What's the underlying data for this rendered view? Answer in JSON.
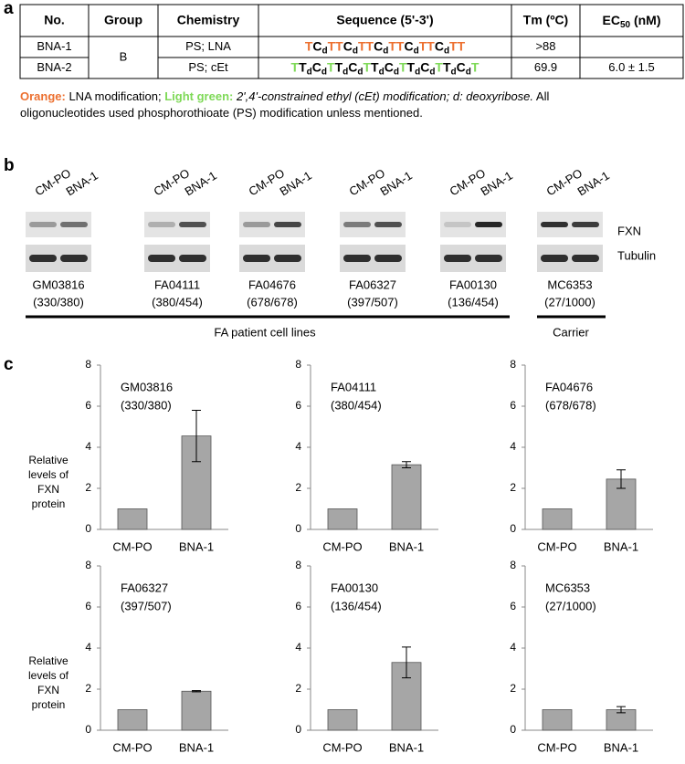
{
  "panel_labels": [
    "a",
    "b",
    "c"
  ],
  "table": {
    "headers": [
      "No.",
      "Group",
      "Chemistry",
      "Sequence (5'-3')",
      "Tm (ºC)",
      {
        "main": "EC",
        "sub": "50",
        "rest": " (nM)"
      }
    ],
    "group": "B",
    "rows": [
      {
        "no": "BNA-1",
        "chemistry": "PS; LNA",
        "tm": ">88",
        "sequence": [
          {
            "b": "T",
            "color": "#ec7030"
          },
          {
            "b": "C",
            "s": "d"
          },
          {
            "b": "T",
            "color": "#ec7030"
          },
          {
            "b": "T",
            "color": "#ec7030"
          },
          {
            "b": "C",
            "s": "d"
          },
          {
            "b": "T",
            "color": "#ec7030"
          },
          {
            "b": "T",
            "color": "#ec7030"
          },
          {
            "b": "C",
            "s": "d"
          },
          {
            "b": "T",
            "color": "#ec7030"
          },
          {
            "b": "T",
            "color": "#ec7030"
          },
          {
            "b": "C",
            "s": "d"
          },
          {
            "b": "T",
            "color": "#ec7030"
          },
          {
            "b": "T",
            "color": "#ec7030"
          },
          {
            "b": "C",
            "s": "d"
          },
          {
            "b": "T",
            "color": "#ec7030"
          },
          {
            "b": "T",
            "color": "#ec7030"
          }
        ]
      },
      {
        "no": "BNA-2",
        "chemistry": "PS; cEt",
        "tm": "69.9",
        "ec50": "6.0 ± 1.5",
        "sequence": [
          {
            "b": "T",
            "color": "#7ed957"
          },
          {
            "b": "T",
            "s": "d"
          },
          {
            "b": "C",
            "s": "d"
          },
          {
            "b": "T",
            "color": "#7ed957"
          },
          {
            "b": "T",
            "s": "d"
          },
          {
            "b": "C",
            "s": "d"
          },
          {
            "b": "T",
            "color": "#7ed957"
          },
          {
            "b": "T",
            "s": "d"
          },
          {
            "b": "C",
            "s": "d"
          },
          {
            "b": "T",
            "color": "#7ed957"
          },
          {
            "b": "T",
            "s": "d"
          },
          {
            "b": "C",
            "s": "d"
          },
          {
            "b": "T",
            "color": "#7ed957"
          },
          {
            "b": "T",
            "s": "d"
          },
          {
            "b": "C",
            "s": "d"
          },
          {
            "b": "T",
            "color": "#7ed957"
          }
        ]
      }
    ]
  },
  "footnote": [
    [
      {
        "text": "Orange:",
        "color": "#ec7030",
        "bold": true
      },
      {
        "text": " LNA modification; "
      },
      {
        "text": "Light green:",
        "color": "#7ed957",
        "bold": true
      },
      {
        "text": " 2',4'-constrained ethyl (cEt) modification; d: deoxyribose.",
        "italic": true
      },
      {
        "text": "  All"
      }
    ],
    [
      {
        "text": "oligonucleotides used phosphorothioate (PS) modification unless mentioned."
      }
    ]
  ],
  "blot": {
    "lanes": [
      "CM-PO",
      "BNA-1"
    ],
    "rows": [
      "FXN",
      "Tubulin"
    ],
    "blots": [
      {
        "cell_line": "GM03816",
        "ratio": "(330/380)"
      },
      {
        "cell_line": "FA04111",
        "ratio": "(380/454)"
      },
      {
        "cell_line": "FA04676",
        "ratio": "(678/678)"
      },
      {
        "cell_line": "FA06327",
        "ratio": "(397/507)"
      },
      {
        "cell_line": "FA00130",
        "ratio": "(136/454)"
      },
      {
        "cell_line": "MC6353",
        "ratio": "(27/1000)"
      }
    ],
    "groups": [
      "FA  patient cell lines",
      "Carrier"
    ]
  },
  "chart_data": [
    {
      "type": "bar",
      "title": "GM03816",
      "subtitle": "(330/380)",
      "ylabel": [
        "Relative",
        "levels of",
        "FXN",
        "protein"
      ],
      "categories": [
        "CM-PO",
        "BNA-1"
      ],
      "values": [
        1,
        4.55
      ],
      "errors": [
        null,
        1.25
      ],
      "ylim": [
        0,
        8
      ],
      "yticks": [
        0,
        2,
        4,
        6,
        8
      ],
      "color": "#a6a6a6"
    },
    {
      "type": "bar",
      "title": "FA04111",
      "subtitle": "(380/454)",
      "categories": [
        "CM-PO",
        "BNA-1"
      ],
      "values": [
        1,
        3.15
      ],
      "errors": [
        null,
        0.15
      ],
      "ylim": [
        0,
        8
      ],
      "yticks": [
        0,
        2,
        4,
        6,
        8
      ],
      "color": "#a6a6a6"
    },
    {
      "type": "bar",
      "title": "FA04676",
      "subtitle": "(678/678)",
      "categories": [
        "CM-PO",
        "BNA-1"
      ],
      "values": [
        1,
        2.45
      ],
      "errors": [
        null,
        0.45
      ],
      "ylim": [
        0,
        8
      ],
      "yticks": [
        0,
        2,
        4,
        6,
        8
      ],
      "color": "#a6a6a6"
    },
    {
      "type": "bar",
      "title": "FA06327",
      "subtitle": "(397/507)",
      "ylabel": [
        "Relative",
        "levels of",
        "FXN",
        "protein"
      ],
      "categories": [
        "CM-PO",
        "BNA-1"
      ],
      "values": [
        1,
        1.9
      ],
      "errors": [
        null,
        0.03
      ],
      "ylim": [
        0,
        8
      ],
      "yticks": [
        0,
        2,
        4,
        6,
        8
      ],
      "color": "#a6a6a6"
    },
    {
      "type": "bar",
      "title": "FA00130",
      "subtitle": "(136/454)",
      "categories": [
        "CM-PO",
        "BNA-1"
      ],
      "values": [
        1,
        3.3
      ],
      "errors": [
        null,
        0.75
      ],
      "ylim": [
        0,
        8
      ],
      "yticks": [
        0,
        2,
        4,
        6,
        8
      ],
      "color": "#a6a6a6"
    },
    {
      "type": "bar",
      "title": "MC6353",
      "subtitle": "(27/1000)",
      "categories": [
        "CM-PO",
        "BNA-1"
      ],
      "values": [
        1,
        1.0
      ],
      "errors": [
        null,
        0.15
      ],
      "ylim": [
        0,
        8
      ],
      "yticks": [
        0,
        2,
        4,
        6,
        8
      ],
      "color": "#a6a6a6"
    }
  ]
}
